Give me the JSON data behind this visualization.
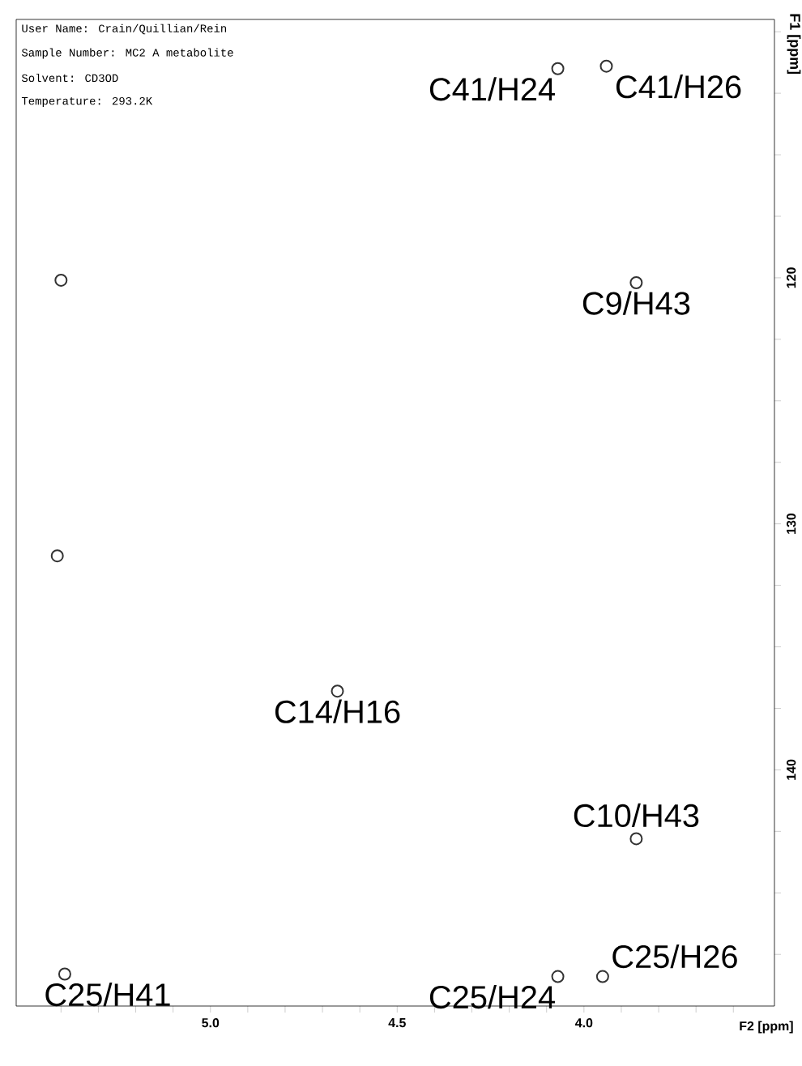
{
  "chart_data": {
    "type": "scatter",
    "annotations": [
      "User Name: Crain/Quillian/Rein",
      "Sample Number: MC2 A metabolite",
      "Solvent: CD3OD",
      "Temperature: 293.2K",
      {
        "text": "C41/H24",
        "x": 4.07,
        "y": 111.5
      },
      {
        "text": "C41/H26",
        "x": 3.94,
        "y": 111.4
      },
      {
        "text": "C9/H43",
        "x": 3.86,
        "y": 120.2
      },
      {
        "text": "C14/H16",
        "x": 4.66,
        "y": 136.8
      },
      {
        "text": "C10/H43",
        "x": 3.86,
        "y": 142.8
      },
      {
        "text": "C25/H41",
        "x": 5.39,
        "y": 148.3
      },
      {
        "text": "C25/H24",
        "x": 4.07,
        "y": 148.4
      },
      {
        "text": "C25/H26",
        "x": 3.95,
        "y": 148.4
      }
    ],
    "xlabel": "F2 [ppm]",
    "ylabel": "F1 [ppm]",
    "x": [
      4.07,
      3.94,
      3.86,
      5.4,
      5.41,
      4.66,
      3.86,
      5.39,
      4.07,
      3.95
    ],
    "values": [
      111.5,
      111.4,
      120.2,
      120.1,
      131.3,
      136.8,
      142.8,
      148.3,
      148.4,
      148.4
    ],
    "color": "#333333",
    "marker": "circle",
    "xlim": [
      5.52,
      3.49
    ],
    "ylim": [
      149.6,
      109.5
    ],
    "xticks": [
      {
        "value": 5.4,
        "label": null
      },
      {
        "value": 5.3,
        "label": null
      },
      {
        "value": 5.2,
        "label": null
      },
      {
        "value": 5.1,
        "label": null
      },
      {
        "value": 5.0,
        "label": "5.0"
      },
      {
        "value": 4.9,
        "label": null
      },
      {
        "value": 4.8,
        "label": null
      },
      {
        "value": 4.7,
        "label": null
      },
      {
        "value": 4.6,
        "label": null
      },
      {
        "value": 4.5,
        "label": "4.5"
      },
      {
        "value": 4.4,
        "label": null
      },
      {
        "value": 4.3,
        "label": null
      },
      {
        "value": 4.2,
        "label": null
      },
      {
        "value": 4.1,
        "label": null
      },
      {
        "value": 4.0,
        "label": "4.0"
      },
      {
        "value": 3.9,
        "label": null
      },
      {
        "value": 3.8,
        "label": null
      },
      {
        "value": 3.7,
        "label": null
      },
      {
        "value": 3.6,
        "label": null
      }
    ],
    "yticks": [
      {
        "value": 110,
        "label": null
      },
      {
        "value": 112.5,
        "label": null
      },
      {
        "value": 115,
        "label": null
      },
      {
        "value": 117.5,
        "label": null
      },
      120,
      {
        "value": 122.5,
        "label": null
      },
      {
        "value": 125,
        "label": null
      },
      {
        "value": 127.5,
        "label": null
      },
      130,
      {
        "value": 132.5,
        "label": null
      },
      {
        "value": 135,
        "label": null
      },
      {
        "value": 137.5,
        "label": null
      },
      140,
      {
        "value": 142.5,
        "label": null
      },
      {
        "value": 145,
        "label": null
      },
      {
        "value": 147.5,
        "label": null
      }
    ],
    "grid": false
  }
}
